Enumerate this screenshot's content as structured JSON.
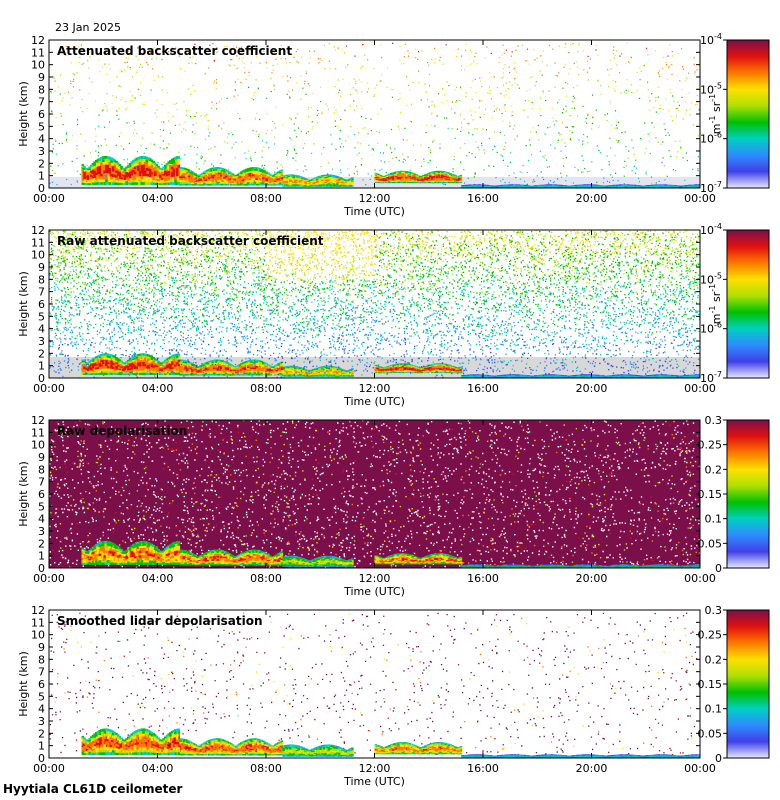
{
  "date": "23 Jan 2025",
  "footer": "Hyytiala CL61D ceilometer",
  "colors": {
    "background": "#ffffff",
    "no_signal": "#d8d8d8",
    "depol_noise": "#7a0f4a",
    "colormap": [
      "#e8e8ff",
      "#4040e8",
      "#2f8cff",
      "#00d0c0",
      "#00c000",
      "#b0e000",
      "#ffe000",
      "#ff7800",
      "#e01010",
      "#7a0f4a"
    ]
  },
  "chart_data": [
    {
      "type": "heatmap",
      "title": "Attenuated backscatter coefficient",
      "xlabel": "Time (UTC)",
      "ylabel": "Height (km)",
      "xlim": [
        "00:00",
        "24:00"
      ],
      "xticks": [
        "00:00",
        "04:00",
        "08:00",
        "12:00",
        "16:00",
        "20:00",
        "00:00"
      ],
      "ylim": [
        0,
        12
      ],
      "yticks": [
        "0",
        "1",
        "2",
        "3",
        "4",
        "5",
        "6",
        "7",
        "8",
        "9",
        "10",
        "11",
        "12"
      ],
      "colorbar": {
        "scale": "log",
        "range": [
          1e-07,
          0.0001
        ],
        "ticks": [
          {
            "base": "10",
            "exp": "-7"
          },
          {
            "base": "10",
            "exp": "-6"
          },
          {
            "base": "10",
            "exp": "-5"
          },
          {
            "base": "10",
            "exp": "-4"
          }
        ],
        "unit": {
          "m": "m",
          "m_exp": "-1",
          "sr": "sr",
          "sr_exp": "-1"
        }
      },
      "noise": "sparse",
      "cloud_layers": [
        {
          "start_h": 1.2,
          "end_h": 4.8,
          "top_km": 2.6,
          "base_km": 0.25,
          "intensity": 0.85
        },
        {
          "start_h": 4.8,
          "end_h": 8.6,
          "top_km": 1.7,
          "base_km": 0.2,
          "intensity": 0.8
        },
        {
          "start_h": 8.6,
          "end_h": 11.2,
          "top_km": 1.1,
          "base_km": 0.1,
          "intensity": 0.7
        },
        {
          "start_h": 12.0,
          "end_h": 15.2,
          "top_km": 1.4,
          "base_km": 0.4,
          "intensity": 0.85
        },
        {
          "start_h": 15.2,
          "end_h": 24.0,
          "top_km": 0.3,
          "base_km": 0.05,
          "intensity": 0.4
        }
      ]
    },
    {
      "type": "heatmap",
      "title": "Raw attenuated backscatter coefficient",
      "xlabel": "Time (UTC)",
      "ylabel": "Height (km)",
      "xlim": [
        "00:00",
        "24:00"
      ],
      "xticks": [
        "00:00",
        "04:00",
        "08:00",
        "12:00",
        "16:00",
        "20:00",
        "00:00"
      ],
      "ylim": [
        0,
        12
      ],
      "yticks": [
        "0",
        "1",
        "2",
        "3",
        "4",
        "5",
        "6",
        "7",
        "8",
        "9",
        "10",
        "11",
        "12"
      ],
      "colorbar": {
        "scale": "log",
        "range": [
          1e-07,
          0.0001
        ],
        "ticks": [
          {
            "base": "10",
            "exp": "-7"
          },
          {
            "base": "10",
            "exp": "-6"
          },
          {
            "base": "10",
            "exp": "-5"
          },
          {
            "base": "10",
            "exp": "-4"
          }
        ],
        "unit": {
          "m": "m",
          "m_exp": "-1",
          "sr": "sr",
          "sr_exp": "-1"
        }
      },
      "noise": "dense",
      "cloud_layers": [
        {
          "start_h": 1.2,
          "end_h": 4.8,
          "top_km": 2.0,
          "base_km": 0.25,
          "intensity": 0.85
        },
        {
          "start_h": 4.8,
          "end_h": 8.6,
          "top_km": 1.5,
          "base_km": 0.2,
          "intensity": 0.8
        },
        {
          "start_h": 8.6,
          "end_h": 11.2,
          "top_km": 1.0,
          "base_km": 0.1,
          "intensity": 0.7
        },
        {
          "start_h": 12.0,
          "end_h": 15.2,
          "top_km": 1.2,
          "base_km": 0.4,
          "intensity": 0.85
        },
        {
          "start_h": 15.2,
          "end_h": 24.0,
          "top_km": 0.3,
          "base_km": 0.05,
          "intensity": 0.4
        }
      ]
    },
    {
      "type": "heatmap",
      "title": "Raw depolarisation",
      "xlabel": "Time (UTC)",
      "ylabel": "Height (km)",
      "xlim": [
        "00:00",
        "24:00"
      ],
      "xticks": [
        "00:00",
        "04:00",
        "08:00",
        "12:00",
        "16:00",
        "20:00",
        "00:00"
      ],
      "ylim": [
        0,
        12
      ],
      "yticks": [
        "0",
        "1",
        "2",
        "3",
        "4",
        "5",
        "6",
        "7",
        "8",
        "9",
        "10",
        "11",
        "12"
      ],
      "colorbar": {
        "scale": "linear",
        "range": [
          0,
          0.3
        ],
        "ticks": [
          "0",
          "0.05",
          "0.1",
          "0.15",
          "0.2",
          "0.25",
          "0.3"
        ]
      },
      "noise": "saturated",
      "cloud_layers": [
        {
          "start_h": 1.2,
          "end_h": 4.8,
          "top_km": 2.2,
          "base_km": 0.25,
          "intensity": 0.8
        },
        {
          "start_h": 4.8,
          "end_h": 8.6,
          "top_km": 1.5,
          "base_km": 0.2,
          "intensity": 0.8
        },
        {
          "start_h": 8.6,
          "end_h": 11.2,
          "top_km": 1.0,
          "base_km": 0.1,
          "intensity": 0.6
        },
        {
          "start_h": 12.0,
          "end_h": 15.2,
          "top_km": 1.2,
          "base_km": 0.3,
          "intensity": 0.8
        },
        {
          "start_h": 15.2,
          "end_h": 24.0,
          "top_km": 0.3,
          "base_km": 0.05,
          "intensity": 0.4
        }
      ]
    },
    {
      "type": "heatmap",
      "title": "Smoothed lidar depolarisation",
      "xlabel": "Time (UTC)",
      "ylabel": "Height (km)",
      "xlim": [
        "00:00",
        "24:00"
      ],
      "xticks": [
        "00:00",
        "04:00",
        "08:00",
        "12:00",
        "16:00",
        "20:00",
        "00:00"
      ],
      "ylim": [
        0,
        12
      ],
      "yticks": [
        "0",
        "1",
        "2",
        "3",
        "4",
        "5",
        "6",
        "7",
        "8",
        "9",
        "10",
        "11",
        "12"
      ],
      "colorbar": {
        "scale": "linear",
        "range": [
          0,
          0.3
        ],
        "ticks": [
          "0",
          "0.05",
          "0.1",
          "0.15",
          "0.2",
          "0.25",
          "0.3"
        ]
      },
      "noise": "sparse-purple",
      "cloud_layers": [
        {
          "start_h": 1.2,
          "end_h": 4.8,
          "top_km": 2.4,
          "base_km": 0.25,
          "intensity": 0.85
        },
        {
          "start_h": 4.8,
          "end_h": 8.6,
          "top_km": 1.6,
          "base_km": 0.2,
          "intensity": 0.85
        },
        {
          "start_h": 8.6,
          "end_h": 11.2,
          "top_km": 1.1,
          "base_km": 0.1,
          "intensity": 0.6
        },
        {
          "start_h": 12.0,
          "end_h": 15.2,
          "top_km": 1.3,
          "base_km": 0.3,
          "intensity": 0.8
        },
        {
          "start_h": 15.2,
          "end_h": 24.0,
          "top_km": 0.3,
          "base_km": 0.05,
          "intensity": 0.4
        }
      ]
    }
  ]
}
